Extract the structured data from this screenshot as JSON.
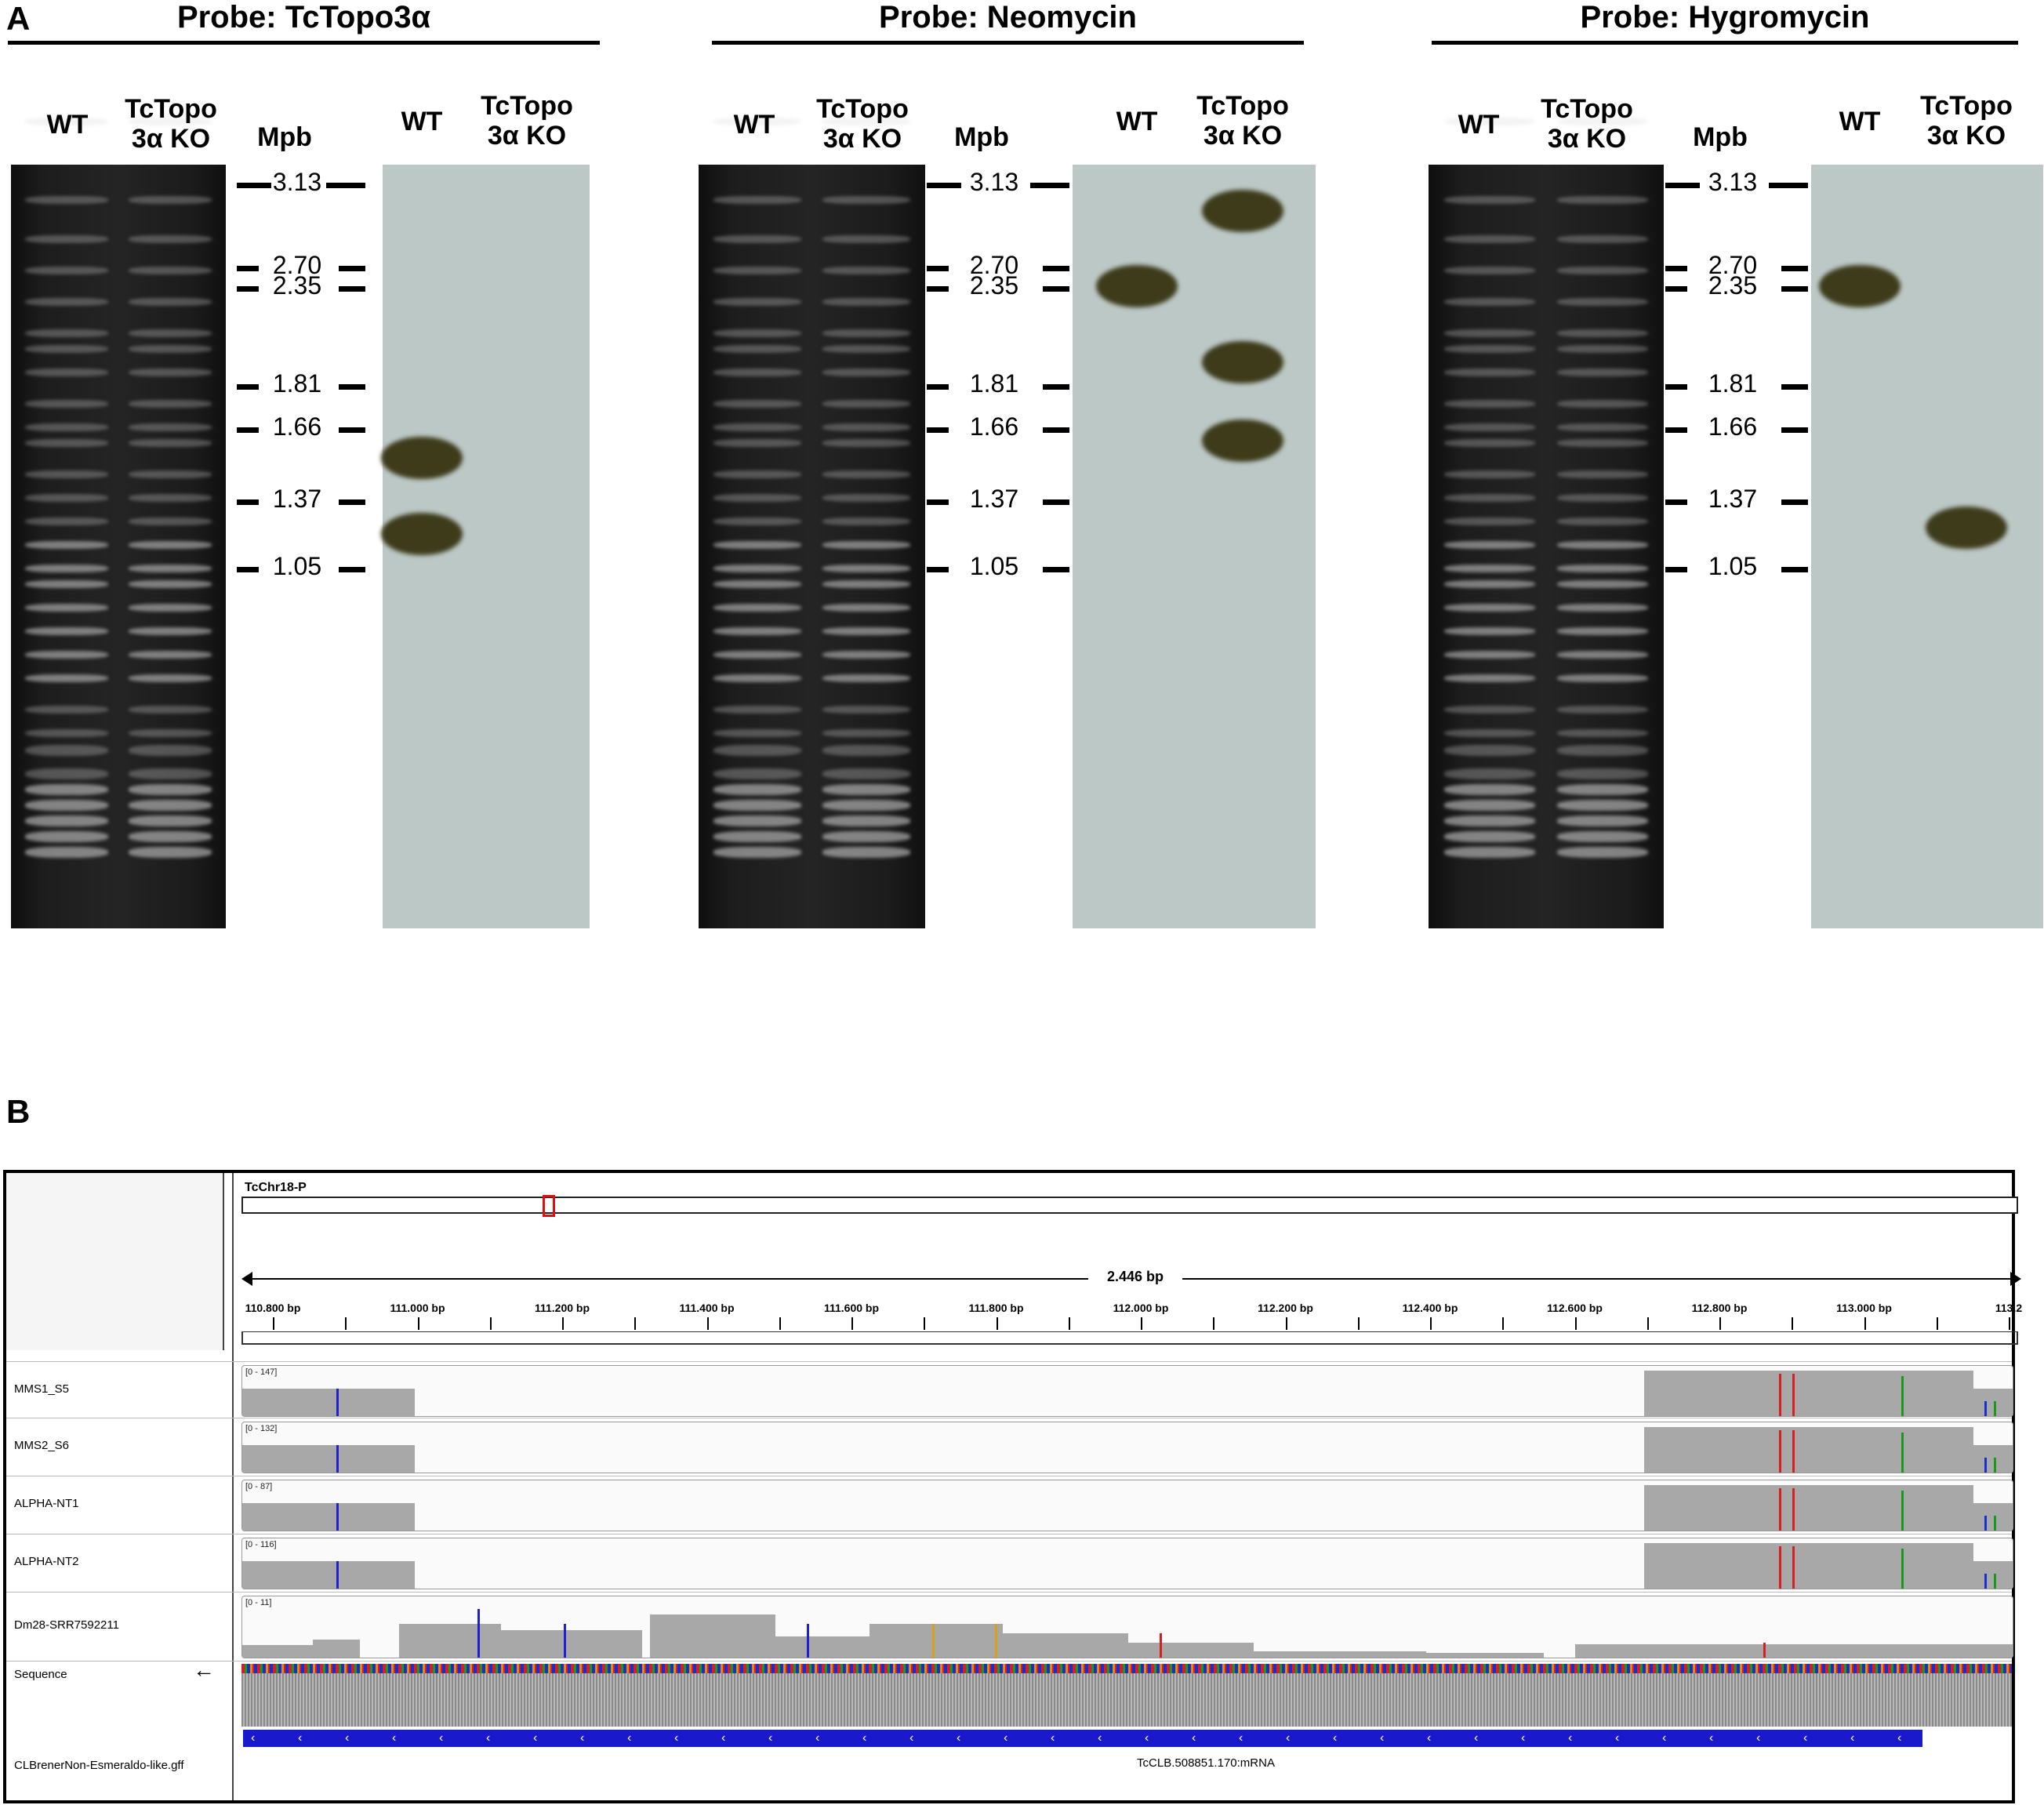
{
  "panel_a": {
    "letter": "A",
    "probes": [
      {
        "title": "Probe: TcTopo3α",
        "gel_labels": [
          "WT",
          "TcTopo\n3α KO"
        ],
        "marker_title": "Mpb",
        "blot_labels": [
          "WT",
          "TcTopo\n3α KO"
        ],
        "spots": [
          {
            "lane": "WT",
            "size_mpb": 1.55
          },
          {
            "lane": "WT",
            "size_mpb": 1.22
          }
        ]
      },
      {
        "title": "Probe: Neomycin",
        "gel_labels": [
          "WT",
          "TcTopo\n3α KO"
        ],
        "marker_title": "Mpb",
        "blot_labels": [
          "WT",
          "TcTopo\n3α KO"
        ],
        "spots": [
          {
            "lane": "WT",
            "size_mpb": 2.4
          },
          {
            "lane": "KO",
            "size_mpb": 3.0
          },
          {
            "lane": "KO",
            "size_mpb": 1.95
          },
          {
            "lane": "KO",
            "size_mpb": 1.62
          }
        ]
      },
      {
        "title": "Probe: Hygromycin",
        "gel_labels": [
          "WT",
          "TcTopo\n3α KO"
        ],
        "marker_title": "Mpb",
        "blot_labels": [
          "WT",
          "TcTopo\n3α KO"
        ],
        "spots": [
          {
            "lane": "WT",
            "size_mpb": 2.4
          },
          {
            "lane": "KO",
            "size_mpb": 1.25
          }
        ]
      }
    ],
    "markers": [
      "3.13",
      "2.70",
      "2.35",
      "1.81",
      "1.66",
      "1.37",
      "1.05"
    ]
  },
  "panel_b": {
    "letter": "B",
    "chromosome": "TcChr18-P",
    "span": "2.446 bp",
    "bp_ticks": [
      "110.800 bp",
      "111.000 bp",
      "111.200 bp",
      "111.400 bp",
      "111.600 bp",
      "111.800 bp",
      "112.000 bp",
      "112.200 bp",
      "112.400 bp",
      "112.600 bp",
      "112.800 bp",
      "113.000 bp",
      "113.2"
    ],
    "tracks": [
      {
        "name": "MMS1_S5",
        "range": "[0 - 147]"
      },
      {
        "name": "MMS2_S6",
        "range": "[0 - 132]"
      },
      {
        "name": "ALPHA-NT1",
        "range": "[0 - 87]"
      },
      {
        "name": "ALPHA-NT2",
        "range": "[0 - 116]"
      },
      {
        "name": "Dm28-SRR7592211",
        "range": "[0 - 11]"
      }
    ],
    "sequence_label": "Sequence",
    "annotation_track": "CLBrenerNon-Esmeraldo-like.gff",
    "feature_name": "TcCLB.508851.170:mRNA",
    "colors": {
      "feature": "#1a1acc",
      "coverage": "#a8a8a8",
      "locus_box": "#e01010"
    }
  }
}
